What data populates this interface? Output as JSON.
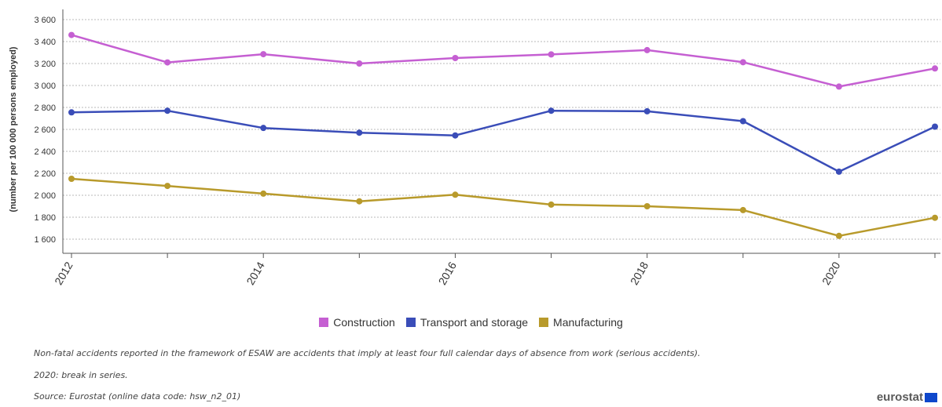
{
  "chart_data": {
    "type": "line",
    "title": "",
    "xlabel": "",
    "ylabel": "(number per 100 000 persons employed)",
    "x": [
      2012,
      2013,
      2014,
      2015,
      2016,
      2017,
      2018,
      2019,
      2020,
      2021
    ],
    "x_tick_labels": [
      "2012",
      "2014",
      "2016",
      "2018",
      "2020"
    ],
    "y_tick_labels": [
      "1 600",
      "1 800",
      "2 000",
      "2 200",
      "2 400",
      "2 600",
      "2 800",
      "3 000",
      "3 200",
      "3 400",
      "3 600"
    ],
    "ylim": [
      1600,
      3600
    ],
    "grid": true,
    "legend_position": "bottom-center",
    "series": [
      {
        "name": "Construction",
        "color": "#c55fd2",
        "values": [
          3460,
          3210,
          3285,
          3200,
          3250,
          3283,
          3322,
          3212,
          2990,
          3155
        ]
      },
      {
        "name": "Transport and storage",
        "color": "#3a4db8",
        "values": [
          2755,
          2770,
          2613,
          2570,
          2545,
          2770,
          2765,
          2675,
          2215,
          2625
        ]
      },
      {
        "name": "Manufacturing",
        "color": "#b89a2b",
        "values": [
          2150,
          2085,
          2015,
          1945,
          2005,
          1915,
          1900,
          1865,
          1630,
          1795
        ]
      }
    ]
  },
  "notes": {
    "definition": "Non-fatal accidents reported in the framework of ESAW are accidents that imply at least four full calendar days of absence from work (serious accidents).",
    "break": "2020: break in series.",
    "source": "Source: Eurostat (online data code: hsw_n2_01)"
  },
  "logo": {
    "text": "eurostat",
    "flag_color": "#0e47cb"
  }
}
